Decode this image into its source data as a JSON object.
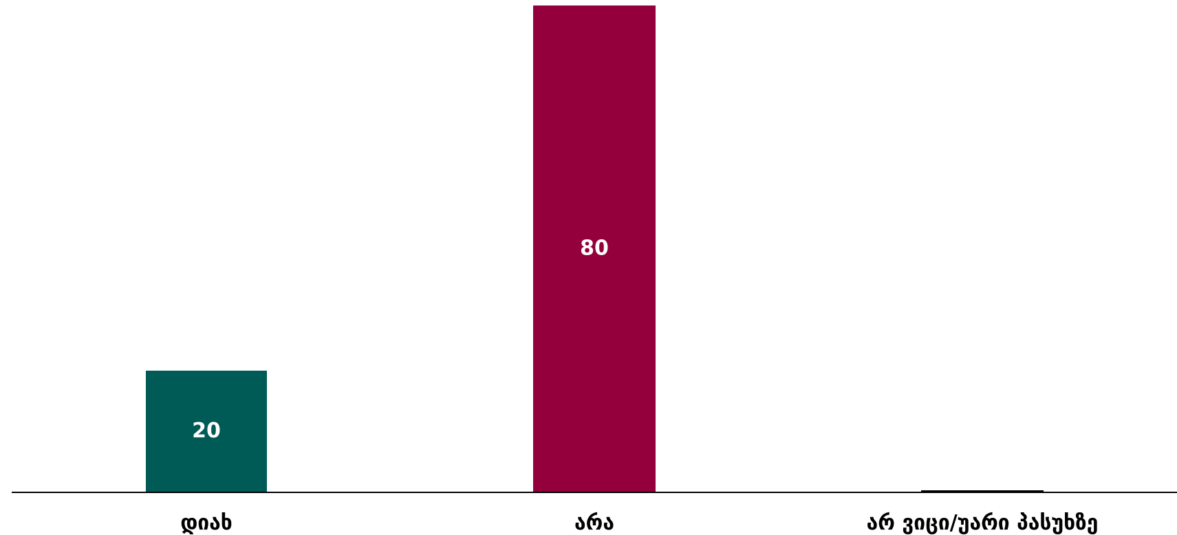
{
  "chart_data": {
    "type": "bar",
    "title": "",
    "xlabel": "",
    "ylabel": "",
    "categories": [
      "დიახ",
      "არა",
      "არ ვიცი/უარი პასუხზე"
    ],
    "values": [
      20,
      80,
      0
    ],
    "data_labels": [
      "20",
      "80",
      ""
    ],
    "colors": [
      "#005a56",
      "#93003c",
      "#000000"
    ],
    "ylim": [
      0,
      80
    ],
    "grid": false,
    "legend": "none"
  }
}
